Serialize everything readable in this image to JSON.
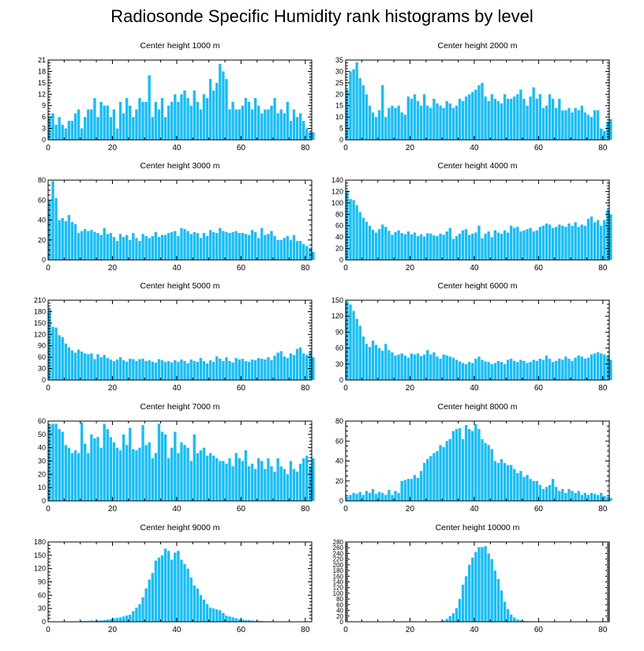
{
  "page": {
    "title": "Radiosonde Specific Humidity rank histograms by level"
  },
  "colors": {
    "bar": "#19bdf4",
    "axis": "#000000",
    "background": "#ffffff"
  },
  "chart_data": [
    {
      "type": "bar",
      "title": "Center height 1000 m",
      "xlim": [
        0,
        82
      ],
      "ylim": [
        0,
        21
      ],
      "xticks": [
        0,
        20,
        40,
        60,
        80
      ],
      "yticks": [
        0,
        3,
        6,
        9,
        12,
        15,
        18,
        21
      ],
      "values": [
        6,
        7,
        4,
        6,
        4,
        3,
        5,
        5,
        7,
        8,
        3,
        6,
        8,
        8,
        11,
        6,
        10,
        9,
        9,
        6,
        8,
        3,
        10,
        7,
        11,
        9,
        6,
        8,
        11,
        10,
        10,
        17,
        6,
        10,
        8,
        11,
        6,
        9,
        10,
        12,
        10,
        12,
        13,
        11,
        9,
        13,
        10,
        8,
        12,
        11,
        16,
        13,
        15,
        20,
        18,
        16,
        8,
        10,
        8,
        8,
        9,
        11,
        10,
        8,
        11,
        9,
        7,
        8,
        8,
        9,
        11,
        7,
        8,
        7,
        10,
        5,
        8,
        6,
        7,
        5,
        3,
        2,
        2
      ]
    },
    {
      "type": "bar",
      "title": "Center height 2000 m",
      "xlim": [
        0,
        82
      ],
      "ylim": [
        0,
        35
      ],
      "xticks": [
        0,
        20,
        40,
        60,
        80
      ],
      "yticks": [
        0,
        5,
        10,
        15,
        20,
        25,
        30,
        35
      ],
      "values": [
        22,
        30,
        31,
        34,
        27,
        24,
        20,
        15,
        12,
        10,
        13,
        24,
        10,
        14,
        15,
        14,
        15,
        12,
        11,
        19,
        18,
        20,
        17,
        15,
        20,
        15,
        14,
        18,
        16,
        15,
        14,
        17,
        16,
        14,
        15,
        18,
        17,
        19,
        20,
        21,
        22,
        24,
        25,
        19,
        17,
        20,
        18,
        17,
        16,
        20,
        18,
        18,
        19,
        20,
        22,
        18,
        15,
        19,
        23,
        18,
        20,
        14,
        15,
        20,
        18,
        14,
        18,
        13,
        13,
        14,
        12,
        14,
        13,
        15,
        12,
        11,
        10,
        13,
        13,
        5,
        4,
        8,
        9
      ]
    },
    {
      "type": "bar",
      "title": "Center height 3000 m",
      "xlim": [
        0,
        82
      ],
      "ylim": [
        0,
        80
      ],
      "xticks": [
        0,
        20,
        40,
        60,
        80
      ],
      "yticks": [
        0,
        20,
        40,
        60,
        80
      ],
      "values": [
        60,
        79,
        62,
        40,
        42,
        39,
        45,
        38,
        36,
        27,
        29,
        31,
        29,
        30,
        28,
        27,
        25,
        32,
        26,
        27,
        23,
        19,
        26,
        23,
        25,
        20,
        27,
        22,
        19,
        26,
        24,
        22,
        24,
        28,
        23,
        25,
        25,
        27,
        28,
        29,
        24,
        32,
        31,
        29,
        26,
        28,
        27,
        22,
        27,
        24,
        30,
        28,
        27,
        32,
        29,
        28,
        27,
        28,
        29,
        27,
        27,
        26,
        25,
        30,
        28,
        22,
        32,
        25,
        26,
        29,
        24,
        20,
        20,
        22,
        24,
        20,
        25,
        19,
        19,
        16,
        14,
        12,
        8
      ]
    },
    {
      "type": "bar",
      "title": "Center height 4000 m",
      "xlim": [
        0,
        82
      ],
      "ylim": [
        0,
        140
      ],
      "xticks": [
        0,
        20,
        40,
        60,
        80
      ],
      "yticks": [
        0,
        20,
        40,
        60,
        80,
        100,
        120,
        140
      ],
      "values": [
        122,
        107,
        105,
        96,
        84,
        74,
        67,
        60,
        53,
        48,
        54,
        62,
        58,
        51,
        44,
        49,
        52,
        47,
        45,
        50,
        45,
        48,
        42,
        45,
        41,
        47,
        46,
        43,
        42,
        46,
        44,
        50,
        56,
        37,
        42,
        46,
        52,
        54,
        44,
        46,
        48,
        60,
        38,
        46,
        50,
        40,
        52,
        48,
        46,
        52,
        48,
        60,
        56,
        58,
        50,
        52,
        54,
        56,
        50,
        52,
        58,
        60,
        64,
        62,
        56,
        58,
        62,
        60,
        58,
        64,
        60,
        66,
        58,
        62,
        60,
        72,
        76,
        66,
        70,
        60,
        70,
        88,
        80
      ]
    },
    {
      "type": "bar",
      "title": "Center height 5000 m",
      "xlim": [
        0,
        82
      ],
      "ylim": [
        0,
        210
      ],
      "xticks": [
        0,
        20,
        40,
        60,
        80
      ],
      "yticks": [
        0,
        30,
        60,
        90,
        120,
        150,
        180,
        210
      ],
      "values": [
        186,
        140,
        138,
        118,
        113,
        96,
        86,
        78,
        72,
        80,
        75,
        70,
        68,
        70,
        55,
        68,
        60,
        66,
        58,
        54,
        50,
        54,
        60,
        52,
        48,
        56,
        55,
        50,
        55,
        56,
        50,
        52,
        48,
        46,
        55,
        52,
        48,
        50,
        46,
        52,
        48,
        54,
        50,
        44,
        54,
        50,
        48,
        58,
        50,
        44,
        52,
        48,
        62,
        56,
        50,
        60,
        50,
        46,
        58,
        54,
        56,
        50,
        48,
        54,
        52,
        58,
        56,
        54,
        60,
        52,
        64,
        72,
        76,
        62,
        58,
        70,
        66,
        82,
        86,
        70,
        66,
        76,
        60
      ]
    },
    {
      "type": "bar",
      "title": "Center height 6000 m",
      "xlim": [
        0,
        82
      ],
      "ylim": [
        0,
        150
      ],
      "xticks": [
        0,
        20,
        40,
        60,
        80
      ],
      "yticks": [
        0,
        30,
        60,
        90,
        120,
        150
      ],
      "values": [
        148,
        142,
        130,
        115,
        102,
        82,
        68,
        62,
        74,
        66,
        60,
        55,
        68,
        56,
        52,
        46,
        48,
        50,
        46,
        42,
        50,
        48,
        50,
        45,
        48,
        56,
        48,
        52,
        44,
        40,
        48,
        46,
        44,
        42,
        38,
        35,
        32,
        30,
        34,
        32,
        40,
        44,
        38,
        35,
        34,
        30,
        32,
        36,
        34,
        30,
        38,
        40,
        36,
        34,
        38,
        36,
        32,
        34,
        38,
        36,
        40,
        38,
        46,
        40,
        34,
        36,
        40,
        38,
        44,
        40,
        36,
        42,
        46,
        44,
        40,
        42,
        48,
        50,
        52,
        50,
        48,
        44,
        38
      ]
    },
    {
      "type": "bar",
      "title": "Center height 7000 m",
      "xlim": [
        0,
        82
      ],
      "ylim": [
        0,
        60
      ],
      "xticks": [
        0,
        20,
        40,
        60,
        80
      ],
      "yticks": [
        0,
        10,
        20,
        30,
        40,
        50,
        60
      ],
      "values": [
        57,
        58,
        58,
        54,
        52,
        42,
        40,
        36,
        38,
        36,
        59,
        43,
        36,
        50,
        47,
        48,
        40,
        58,
        54,
        48,
        44,
        40,
        38,
        50,
        42,
        55,
        39,
        38,
        40,
        57,
        42,
        44,
        32,
        36,
        58,
        52,
        50,
        32,
        40,
        52,
        36,
        44,
        42,
        40,
        30,
        50,
        36,
        38,
        40,
        34,
        36,
        34,
        32,
        30,
        30,
        28,
        32,
        26,
        36,
        32,
        30,
        38,
        26,
        28,
        24,
        32,
        30,
        24,
        32,
        26,
        22,
        32,
        26,
        24,
        20,
        30,
        24,
        22,
        28,
        32,
        34,
        26,
        32
      ]
    },
    {
      "type": "bar",
      "title": "Center height 8000 m",
      "xlim": [
        0,
        82
      ],
      "ylim": [
        0,
        80
      ],
      "xticks": [
        0,
        20,
        40,
        60,
        80
      ],
      "yticks": [
        0,
        20,
        40,
        60,
        80
      ],
      "values": [
        4,
        6,
        8,
        7,
        9,
        6,
        10,
        8,
        12,
        7,
        9,
        8,
        6,
        11,
        6,
        10,
        8,
        20,
        21,
        22,
        22,
        26,
        23,
        30,
        38,
        42,
        45,
        48,
        50,
        56,
        54,
        60,
        62,
        70,
        72,
        73,
        62,
        76,
        72,
        70,
        77,
        72,
        62,
        58,
        56,
        52,
        40,
        38,
        42,
        38,
        36,
        36,
        32,
        28,
        30,
        24,
        26,
        22,
        20,
        20,
        16,
        12,
        14,
        16,
        22,
        14,
        10,
        12,
        8,
        12,
        10,
        8,
        10,
        6,
        8,
        6,
        8,
        7,
        6,
        8,
        5,
        4,
        3
      ]
    },
    {
      "type": "bar",
      "title": "Center height 9000 m",
      "xlim": [
        0,
        82
      ],
      "ylim": [
        0,
        180
      ],
      "xticks": [
        0,
        20,
        40,
        60,
        80
      ],
      "yticks": [
        0,
        30,
        60,
        90,
        120,
        150,
        180
      ],
      "values": [
        0,
        0,
        0,
        0,
        0,
        0,
        0,
        0,
        0,
        0,
        2,
        2,
        2,
        3,
        2,
        3,
        3,
        4,
        5,
        6,
        8,
        9,
        10,
        12,
        14,
        16,
        24,
        32,
        40,
        55,
        75,
        95,
        110,
        138,
        145,
        150,
        165,
        160,
        140,
        156,
        160,
        140,
        130,
        120,
        100,
        82,
        75,
        60,
        50,
        40,
        32,
        30,
        28,
        26,
        20,
        14,
        12,
        10,
        8,
        6,
        5,
        4,
        4,
        3,
        2,
        2,
        2,
        1,
        1,
        1,
        0,
        0,
        0,
        0,
        0,
        0,
        0,
        0,
        0,
        0,
        0,
        0,
        0
      ]
    },
    {
      "type": "bar",
      "title": "Center height 10000 m",
      "xlim": [
        0,
        82
      ],
      "ylim": [
        0,
        280
      ],
      "xticks": [
        0,
        20,
        40,
        60,
        80
      ],
      "yticks": [
        0,
        20,
        40,
        60,
        80,
        100,
        120,
        140,
        160,
        180,
        200,
        220,
        240,
        260,
        280
      ],
      "values": [
        0,
        0,
        0,
        0,
        0,
        0,
        0,
        0,
        0,
        0,
        0,
        0,
        0,
        0,
        0,
        0,
        0,
        0,
        0,
        0,
        0,
        0,
        0,
        0,
        0,
        0,
        0,
        0,
        1,
        2,
        4,
        10,
        20,
        30,
        48,
        80,
        130,
        160,
        200,
        225,
        245,
        262,
        262,
        265,
        240,
        220,
        180,
        150,
        110,
        70,
        45,
        25,
        15,
        8,
        5,
        3,
        2,
        2,
        1,
        1,
        1,
        0,
        0,
        0,
        0,
        0,
        0,
        0,
        0,
        0,
        0,
        0,
        0,
        0,
        0,
        0,
        0,
        0,
        0,
        0,
        0,
        0,
        0
      ]
    }
  ]
}
